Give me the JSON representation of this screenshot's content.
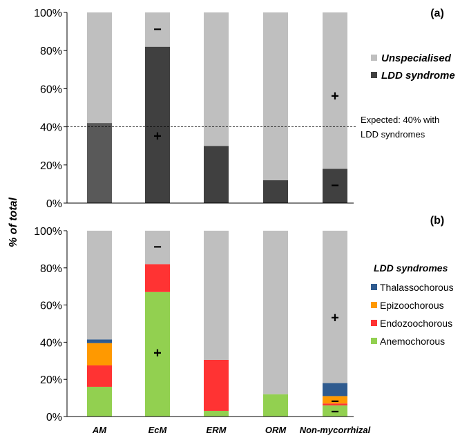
{
  "colors": {
    "unspecialised": "#bfbfbf",
    "ldd": "#404040",
    "ldd_am": "#595959",
    "thalassochorous": "#2f5b8f",
    "epizoochorous": "#ff9900",
    "endozoochorous": "#ff3333",
    "anemochorous": "#92d050"
  },
  "chart_data": [
    {
      "type": "bar",
      "stacked": true,
      "panel": "(a)",
      "ylabel": "% of total",
      "ylim": [
        0,
        100
      ],
      "yticks": [
        "0%",
        "20%",
        "40%",
        "60%",
        "80%",
        "100%"
      ],
      "categories": [
        "AM",
        "EcM",
        "ERM",
        "ORM",
        "Non-mycorrhizal"
      ],
      "series": [
        {
          "name": "LDD syndrome",
          "values": [
            42,
            82,
            30,
            12,
            18
          ]
        },
        {
          "name": "Unspecialised",
          "values": [
            58,
            18,
            70,
            88,
            82
          ]
        }
      ],
      "legend": {
        "position": "right",
        "items": [
          "Unspecialised",
          "LDD syndrome"
        ]
      },
      "reference_line": {
        "y": 40,
        "label_line1": "Expected: 40% with",
        "label_line2": "LDD syndromes"
      },
      "annotations": [
        {
          "category": "EcM",
          "y": 91,
          "text": "−"
        },
        {
          "category": "EcM",
          "y": 35,
          "text": "+"
        },
        {
          "category": "Non-mycorrhizal",
          "y": 56,
          "text": "+"
        },
        {
          "category": "Non-mycorrhizal",
          "y": 9,
          "text": "−"
        }
      ]
    },
    {
      "type": "bar",
      "stacked": true,
      "panel": "(b)",
      "ylim": [
        0,
        100
      ],
      "yticks": [
        "0%",
        "20%",
        "40%",
        "60%",
        "80%",
        "100%"
      ],
      "categories": [
        "AM",
        "EcM",
        "ERM",
        "ORM",
        "Non-mycorrhizal"
      ],
      "series": [
        {
          "name": "Anemochorous",
          "values": [
            16,
            67,
            3,
            12,
            6
          ]
        },
        {
          "name": "Endozoochorous",
          "values": [
            11.5,
            15,
            27.5,
            0,
            1
          ]
        },
        {
          "name": "Epizoochorous",
          "values": [
            12,
            0,
            0,
            0,
            4
          ]
        },
        {
          "name": "Thalassochorous",
          "values": [
            2,
            0,
            0,
            0,
            7
          ]
        },
        {
          "name": "Unspecialised",
          "values": [
            58.5,
            18,
            69.5,
            88,
            82
          ]
        }
      ],
      "legend": {
        "position": "right",
        "title": "LDD syndromes",
        "items": [
          "Thalassochorous",
          "Epizoochorous",
          "Endozoochorous",
          "Anemochorous"
        ]
      },
      "annotations": [
        {
          "category": "EcM",
          "y": 91,
          "text": "−"
        },
        {
          "category": "EcM",
          "y": 34,
          "text": "+"
        },
        {
          "category": "Non-mycorrhizal",
          "y": 53,
          "text": "+"
        },
        {
          "category": "Non-mycorrhizal",
          "y": 8,
          "text": "−"
        },
        {
          "category": "Non-mycorrhizal",
          "y": 2.5,
          "text": "−"
        }
      ]
    }
  ]
}
